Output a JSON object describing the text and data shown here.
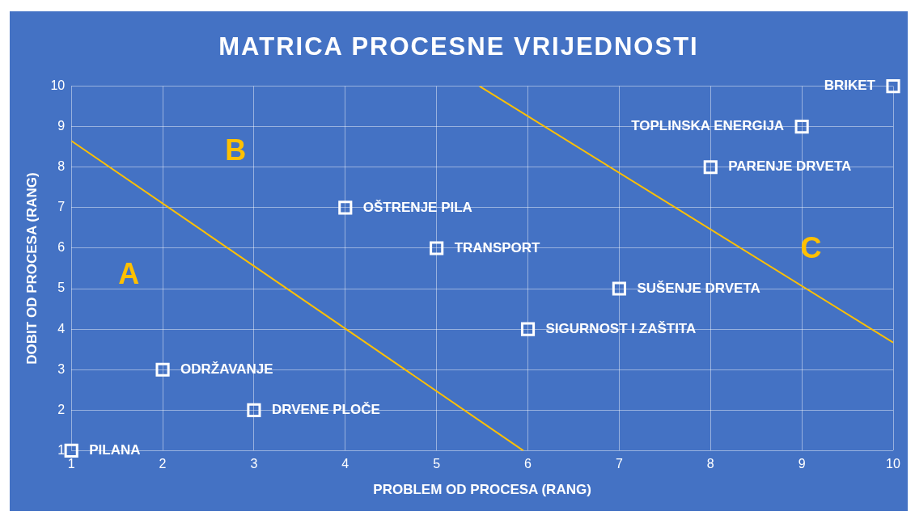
{
  "chart_data": {
    "type": "scatter",
    "title": "MATRICA PROCESNE VRIJEDNOSTI",
    "xlabel": "PROBLEM OD PROCESA (RANG)",
    "ylabel": "DOBIT OD PROCESA (RANG)",
    "xlim": [
      1,
      10
    ],
    "ylim": [
      1,
      10
    ],
    "xticks": [
      1,
      2,
      3,
      4,
      5,
      6,
      7,
      8,
      9,
      10
    ],
    "yticks": [
      1,
      2,
      3,
      4,
      5,
      6,
      7,
      8,
      9,
      10
    ],
    "grid": true,
    "legend": false,
    "series": [
      {
        "color": "#ffffff",
        "marker": "square",
        "x": [
          1,
          2,
          3,
          4,
          5,
          6,
          7,
          8,
          9,
          10
        ],
        "values": [
          1,
          3,
          2,
          7,
          6,
          4,
          5,
          8,
          9,
          10
        ]
      },
      {
        "type": "line",
        "color": "#ffc000",
        "marker": "none",
        "x": [
          1,
          5.95
        ],
        "values": [
          8.65,
          1
        ]
      },
      {
        "type": "line",
        "color": "#ffc000",
        "marker": "none",
        "x": [
          5.47,
          10
        ],
        "values": [
          10,
          3.67
        ]
      }
    ],
    "annotations": [
      {
        "text": "PILANA",
        "x": 1,
        "y": 1
      },
      {
        "text": "ODRŽAVANJE",
        "x": 2,
        "y": 3
      },
      {
        "text": "DRVENE PLOČE",
        "x": 3,
        "y": 2
      },
      {
        "text": "OŠTRENJE PILA",
        "x": 4,
        "y": 7
      },
      {
        "text": "TRANSPORT",
        "x": 5,
        "y": 6
      },
      {
        "text": "SIGURNOST I ZAŠTITA",
        "x": 6,
        "y": 4
      },
      {
        "text": "SUŠENJE DRVETA",
        "x": 7,
        "y": 5
      },
      {
        "text": "PARENJE DRVETA",
        "x": 8,
        "y": 8
      },
      {
        "text": "TOPLINSKA ENERGIJA",
        "x": 9,
        "y": 9
      },
      {
        "text": "BRIKET",
        "x": 10,
        "y": 10
      },
      "A",
      "B",
      "C"
    ]
  }
}
